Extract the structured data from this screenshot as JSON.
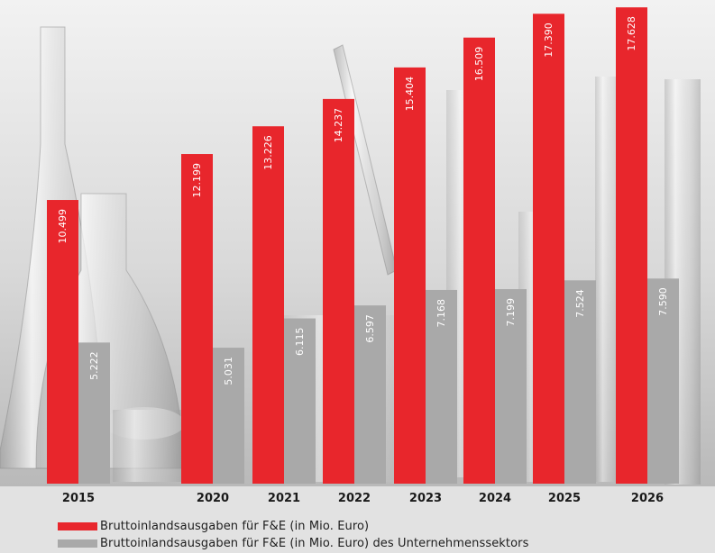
{
  "chart_data": {
    "type": "bar",
    "categories": [
      "2015",
      "2020",
      "2021",
      "2022",
      "2023",
      "2024",
      "2025",
      "2026"
    ],
    "series": [
      {
        "name": "Bruttoinlandsausgaben für F&E (in Mio. Euro)",
        "color": "#e8262c",
        "values": [
          10499,
          12199,
          13226,
          14237,
          15404,
          16509,
          17390,
          17628
        ],
        "labels": [
          "10.499",
          "12.199",
          "13.226",
          "14.237",
          "15.404",
          "16.509",
          "17.390",
          "17.628"
        ]
      },
      {
        "name": "Bruttoinlandsausgaben für F&E (in Mio. Euro) des Unternehmenssektors",
        "color": "#a9a9a9",
        "values": [
          5222,
          5031,
          6115,
          6597,
          7168,
          7199,
          7524,
          7590
        ],
        "labels": [
          "5.222",
          "5.031",
          "6.115",
          "6.597",
          "7.168",
          "7.199",
          "7.524",
          "7.590"
        ]
      }
    ],
    "xlabel": "",
    "ylabel": "",
    "grid": false,
    "legend": "bottom-left"
  }
}
